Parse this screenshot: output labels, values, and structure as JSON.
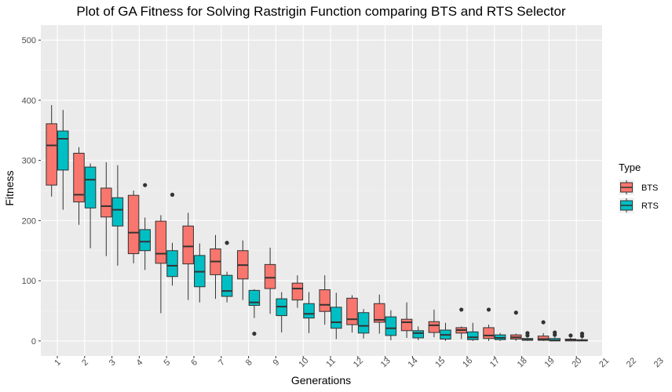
{
  "chart_data": {
    "type": "box",
    "title": "Plot of GA Fitness for Solving Rastrigin Function comparing BTS and RTS Selector",
    "xlabel": "Generations",
    "ylabel": "Fitness",
    "ylim": [
      -25,
      525
    ],
    "y_ticks": [
      0,
      100,
      200,
      300,
      400,
      500
    ],
    "categories": [
      "1",
      "2",
      "3",
      "4",
      "5",
      "6",
      "7",
      "8",
      "9",
      "10",
      "11",
      "12",
      "13",
      "14",
      "15",
      "16",
      "17",
      "18",
      "19",
      "20",
      "21",
      "22",
      "23"
    ],
    "grid": true,
    "legend": {
      "title": "Type",
      "position": "right",
      "entries": [
        {
          "name": "BTS",
          "color": "#F8766D"
        },
        {
          "name": "RTS",
          "color": "#00BFC4"
        }
      ]
    },
    "series": [
      {
        "name": "BTS",
        "color": "#F8766D",
        "boxes": [
          {
            "x": "1",
            "min": 240,
            "q1": 259,
            "median": 325,
            "q3": 361,
            "max": 392,
            "outliers": []
          },
          {
            "x": "2",
            "min": 193,
            "q1": 231,
            "median": 243,
            "q3": 312,
            "max": 322,
            "outliers": []
          },
          {
            "x": "3",
            "min": 141,
            "q1": 206,
            "median": 224,
            "q3": 254,
            "max": 297,
            "outliers": []
          },
          {
            "x": "4",
            "min": 129,
            "q1": 145,
            "median": 180,
            "q3": 242,
            "max": 250,
            "outliers": []
          },
          {
            "x": "5",
            "min": 46,
            "q1": 129,
            "median": 145,
            "q3": 199,
            "max": 209,
            "outliers": []
          },
          {
            "x": "6",
            "min": 68,
            "q1": 128,
            "median": 157,
            "q3": 191,
            "max": 213,
            "outliers": []
          },
          {
            "x": "7",
            "min": 70,
            "q1": 110,
            "median": 132,
            "q3": 153,
            "max": 176,
            "outliers": []
          },
          {
            "x": "8",
            "min": 68,
            "q1": 103,
            "median": 126,
            "q3": 150,
            "max": 167,
            "outliers": []
          },
          {
            "x": "9",
            "min": 45,
            "q1": 87,
            "median": 105,
            "q3": 127,
            "max": 155,
            "outliers": []
          },
          {
            "x": "10",
            "min": 55,
            "q1": 68,
            "median": 87,
            "q3": 96,
            "max": 109,
            "outliers": []
          },
          {
            "x": "11",
            "min": 27,
            "q1": 49,
            "median": 60,
            "q3": 85,
            "max": 109,
            "outliers": []
          },
          {
            "x": "12",
            "min": 14,
            "q1": 27,
            "median": 36,
            "q3": 71,
            "max": 76,
            "outliers": []
          },
          {
            "x": "13",
            "min": 12,
            "q1": 31,
            "median": 35,
            "q3": 62,
            "max": 77,
            "outliers": []
          },
          {
            "x": "14",
            "min": 5,
            "q1": 17,
            "median": 31,
            "q3": 36,
            "max": 64,
            "outliers": []
          },
          {
            "x": "15",
            "min": 6,
            "q1": 14,
            "median": 26,
            "q3": 32,
            "max": 52,
            "outliers": []
          },
          {
            "x": "16",
            "min": 3,
            "q1": 13,
            "median": 18,
            "q3": 22,
            "max": 24,
            "outliers": [
              52
            ]
          },
          {
            "x": "17",
            "min": 0,
            "q1": 4,
            "median": 9,
            "q3": 22,
            "max": 27,
            "outliers": [
              52
            ]
          },
          {
            "x": "18",
            "min": 0,
            "q1": 3,
            "median": 6,
            "q3": 10,
            "max": 12,
            "outliers": [
              47
            ]
          },
          {
            "x": "19",
            "min": 0,
            "q1": 1,
            "median": 3,
            "q3": 8,
            "max": 13,
            "outliers": [
              31
            ]
          },
          {
            "x": "20",
            "min": 0,
            "q1": 0,
            "median": 2,
            "q3": 3,
            "max": 5,
            "outliers": [
              9
            ]
          }
        ]
      },
      {
        "name": "RTS",
        "color": "#00BFC4",
        "boxes": [
          {
            "x": "1",
            "min": 218,
            "q1": 284,
            "median": 336,
            "q3": 349,
            "max": 384,
            "outliers": []
          },
          {
            "x": "2",
            "min": 154,
            "q1": 221,
            "median": 268,
            "q3": 289,
            "max": 295,
            "outliers": []
          },
          {
            "x": "3",
            "min": 125,
            "q1": 191,
            "median": 218,
            "q3": 238,
            "max": 292,
            "outliers": []
          },
          {
            "x": "4",
            "min": 118,
            "q1": 150,
            "median": 165,
            "q3": 185,
            "max": 205,
            "outliers": [
              259
            ]
          },
          {
            "x": "5",
            "min": 92,
            "q1": 107,
            "median": 125,
            "q3": 150,
            "max": 163,
            "outliers": [
              243
            ]
          },
          {
            "x": "6",
            "min": 64,
            "q1": 90,
            "median": 115,
            "q3": 142,
            "max": 162,
            "outliers": []
          },
          {
            "x": "7",
            "min": 64,
            "q1": 74,
            "median": 83,
            "q3": 109,
            "max": 115,
            "outliers": [
              163
            ]
          },
          {
            "x": "8",
            "min": 38,
            "q1": 59,
            "median": 64,
            "q3": 84,
            "max": 86,
            "outliers": [
              12
            ]
          },
          {
            "x": "9",
            "min": 14,
            "q1": 42,
            "median": 57,
            "q3": 70,
            "max": 81,
            "outliers": []
          },
          {
            "x": "10",
            "min": 13,
            "q1": 38,
            "median": 45,
            "q3": 62,
            "max": 81,
            "outliers": []
          },
          {
            "x": "11",
            "min": 3,
            "q1": 21,
            "median": 31,
            "q3": 56,
            "max": 80,
            "outliers": []
          },
          {
            "x": "12",
            "min": 4,
            "q1": 13,
            "median": 25,
            "q3": 47,
            "max": 53,
            "outliers": []
          },
          {
            "x": "13",
            "min": 1,
            "q1": 9,
            "median": 21,
            "q3": 40,
            "max": 51,
            "outliers": []
          },
          {
            "x": "14",
            "min": 1,
            "q1": 5,
            "median": 13,
            "q3": 17,
            "max": 24,
            "outliers": []
          },
          {
            "x": "15",
            "min": 0,
            "q1": 3,
            "median": 10,
            "q3": 18,
            "max": 30,
            "outliers": []
          },
          {
            "x": "16",
            "min": 0,
            "q1": 2,
            "median": 6,
            "q3": 15,
            "max": 30,
            "outliers": []
          },
          {
            "x": "17",
            "min": 0,
            "q1": 2,
            "median": 5,
            "q3": 10,
            "max": 13,
            "outliers": []
          },
          {
            "x": "18",
            "min": 0,
            "q1": 1,
            "median": 2,
            "q3": 4,
            "max": 5,
            "outliers": [
              9,
              13
            ]
          },
          {
            "x": "19",
            "min": 0,
            "q1": 0,
            "median": 1,
            "q3": 4,
            "max": 6,
            "outliers": [
              10,
              14
            ]
          },
          {
            "x": "20",
            "min": 0,
            "q1": 0,
            "median": 1,
            "q3": 2,
            "max": 4,
            "outliers": [
              8,
              12
            ]
          }
        ]
      }
    ]
  }
}
